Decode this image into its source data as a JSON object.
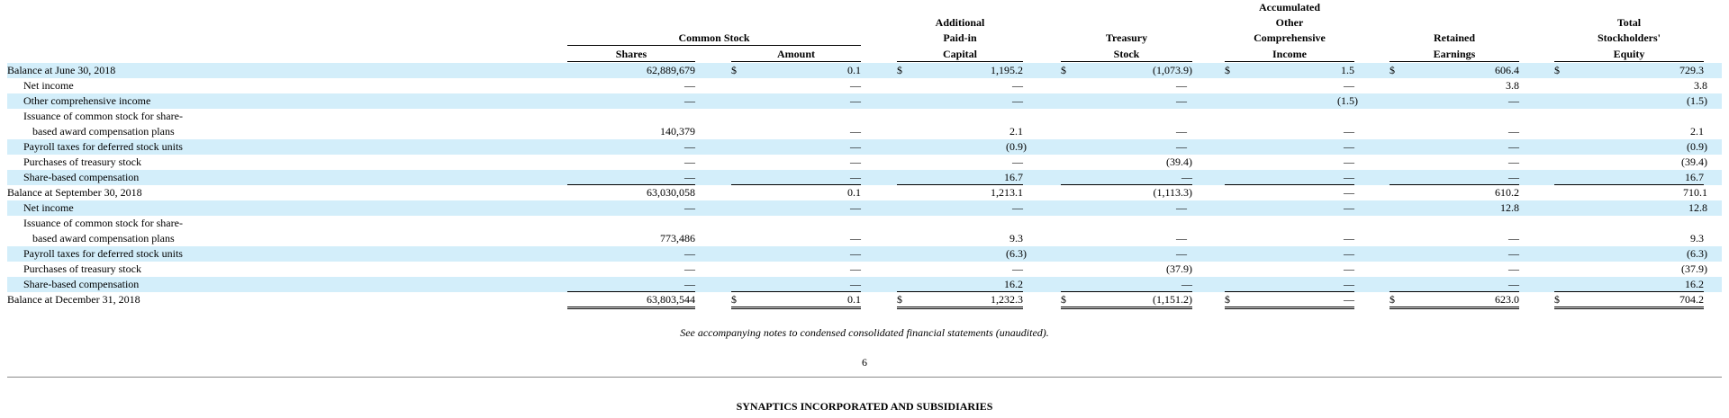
{
  "headers": {
    "common_stock": "Common Stock",
    "shares": "Shares",
    "amount": "Amount",
    "apic": [
      "Additional",
      "Paid-in",
      "Capital"
    ],
    "treasury": [
      "Treasury",
      "Stock"
    ],
    "aoci": [
      "Accumulated",
      "Other",
      "Comprehensive",
      "Income"
    ],
    "retained": [
      "Retained",
      "Earnings"
    ],
    "total": [
      "Total",
      "Stockholders'",
      "Equity"
    ]
  },
  "rows": [
    {
      "label": "Balance at June 30, 2018",
      "shares": "62,889,679",
      "amount": "0.1",
      "apic": "1,195.2",
      "treasury": "(1,073.9)",
      "aoci": "1.5",
      "retained": "606.4",
      "total": "729.3"
    },
    {
      "label": "Net income",
      "shares": "—",
      "amount": "—",
      "apic": "—",
      "treasury": "—",
      "aoci": "—",
      "retained": "3.8",
      "total": "3.8"
    },
    {
      "label": "Other comprehensive income",
      "shares": "—",
      "amount": "—",
      "apic": "—",
      "treasury": "—",
      "aoci": "(1.5)",
      "retained": "—",
      "total": "(1.5)"
    },
    {
      "label_line1": "Issuance of common stock for share-",
      "label_line2": "based award compensation plans",
      "shares": "140,379",
      "amount": "—",
      "apic": "2.1",
      "treasury": "—",
      "aoci": "—",
      "retained": "—",
      "total": "2.1"
    },
    {
      "label": "Payroll taxes for deferred stock units",
      "shares": "—",
      "amount": "—",
      "apic": "(0.9)",
      "treasury": "—",
      "aoci": "—",
      "retained": "—",
      "total": "(0.9)"
    },
    {
      "label": "Purchases of treasury stock",
      "shares": "—",
      "amount": "—",
      "apic": "—",
      "treasury": "(39.4)",
      "aoci": "—",
      "retained": "—",
      "total": "(39.4)"
    },
    {
      "label": "Share-based compensation",
      "shares": "—",
      "amount": "—",
      "apic": "16.7",
      "treasury": "—",
      "aoci": "—",
      "retained": "—",
      "total": "16.7"
    },
    {
      "label": "Balance at September 30, 2018",
      "shares": "63,030,058",
      "amount": "0.1",
      "apic": "1,213.1",
      "treasury": "(1,113.3)",
      "aoci": "—",
      "retained": "610.2",
      "total": "710.1"
    },
    {
      "label": "Net income",
      "shares": "—",
      "amount": "—",
      "apic": "—",
      "treasury": "—",
      "aoci": "—",
      "retained": "12.8",
      "total": "12.8"
    },
    {
      "label_line1": "Issuance of common stock for share-",
      "label_line2": "based award compensation plans",
      "shares": "773,486",
      "amount": "—",
      "apic": "9.3",
      "treasury": "—",
      "aoci": "—",
      "retained": "—",
      "total": "9.3"
    },
    {
      "label": "Payroll taxes for deferred stock units",
      "shares": "—",
      "amount": "—",
      "apic": "(6.3)",
      "treasury": "—",
      "aoci": "—",
      "retained": "—",
      "total": "(6.3)"
    },
    {
      "label": "Purchases of treasury stock",
      "shares": "—",
      "amount": "—",
      "apic": "—",
      "treasury": "(37.9)",
      "aoci": "—",
      "retained": "—",
      "total": "(37.9)"
    },
    {
      "label": "Share-based compensation",
      "shares": "—",
      "amount": "—",
      "apic": "16.2",
      "treasury": "—",
      "aoci": "—",
      "retained": "—",
      "total": "16.2"
    },
    {
      "label": "Balance at December 31, 2018",
      "shares": "63,803,544",
      "amount": "0.1",
      "apic": "1,232.3",
      "treasury": "(1,151.2)",
      "aoci": "—",
      "retained": "623.0",
      "total": "704.2"
    }
  ],
  "currency_symbol": "$",
  "footnote": "See accompanying notes to condensed consolidated financial statements (unaudited).",
  "page_number": "6",
  "company": "SYNAPTICS INCORPORATED AND SUBSIDIARIES",
  "colors": {
    "band": "#d3eefa"
  }
}
